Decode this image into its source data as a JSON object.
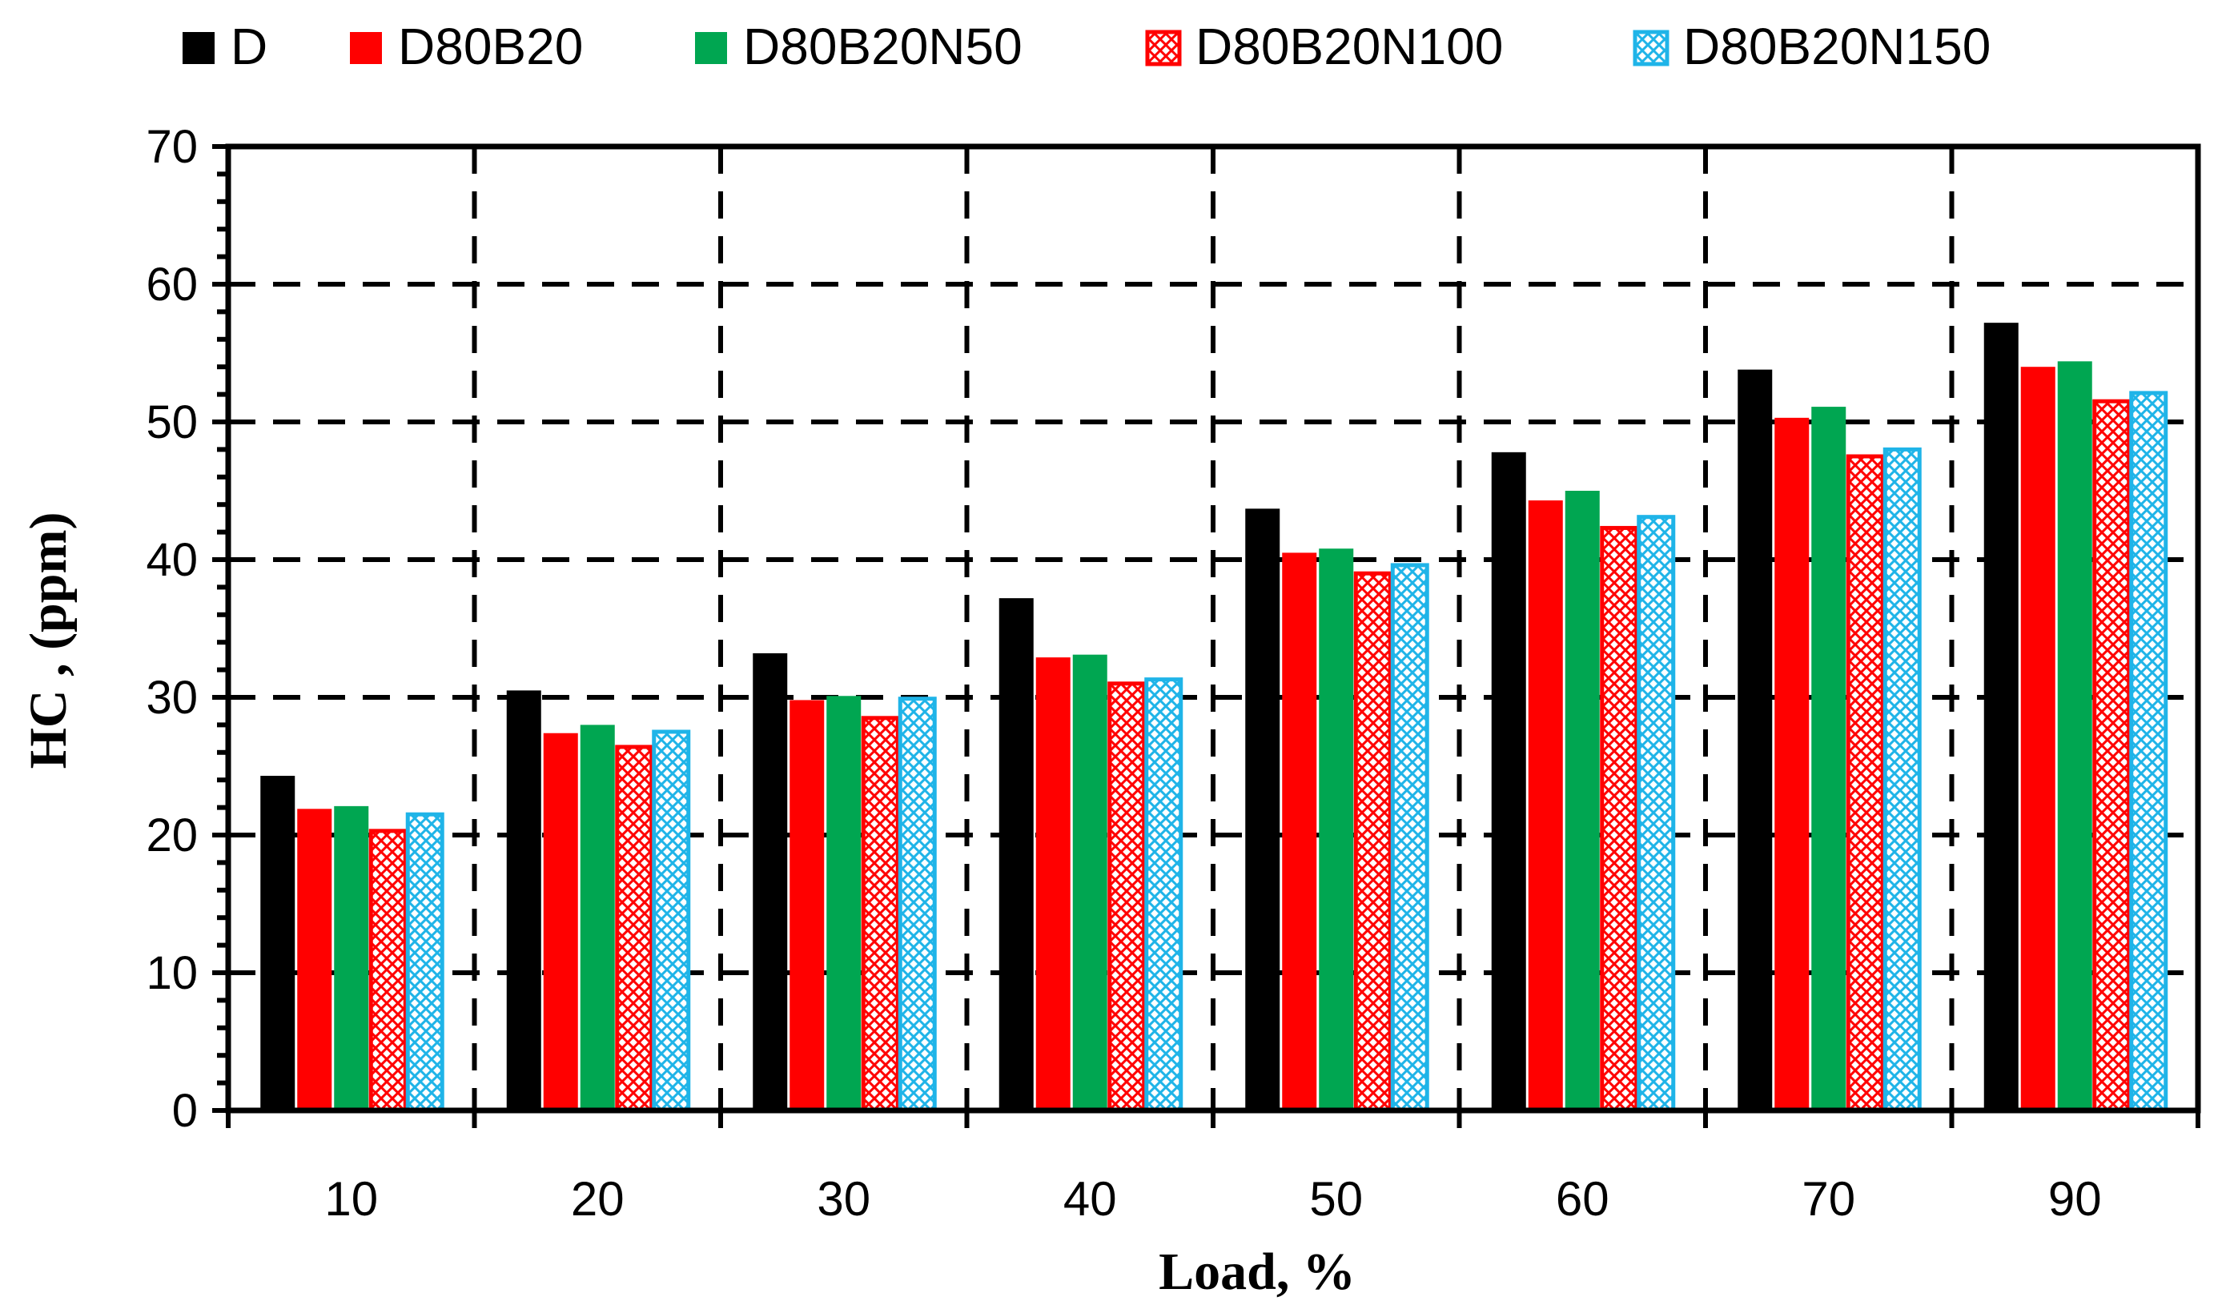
{
  "chart_data": {
    "type": "bar",
    "categories": [
      "10",
      "20",
      "30",
      "40",
      "50",
      "60",
      "70",
      "90"
    ],
    "series": [
      {
        "name": "D",
        "values": [
          24.3,
          30.5,
          33.2,
          37.2,
          43.7,
          47.8,
          53.8,
          57.2
        ]
      },
      {
        "name": "D80B20",
        "values": [
          21.9,
          27.4,
          29.8,
          32.9,
          40.5,
          44.3,
          50.3,
          54.0
        ]
      },
      {
        "name": "D80B20N50",
        "values": [
          22.1,
          28.0,
          30.1,
          33.1,
          40.8,
          45.0,
          51.1,
          54.4
        ]
      },
      {
        "name": "D80B20N100",
        "values": [
          20.3,
          26.4,
          28.5,
          31.0,
          39.0,
          42.3,
          47.5,
          51.5
        ]
      },
      {
        "name": "D80B20N150",
        "values": [
          21.5,
          27.5,
          29.9,
          31.3,
          39.6,
          43.1,
          48.0,
          52.1
        ]
      }
    ],
    "xlabel": "Load, %",
    "ylabel": "HC , (ppm)",
    "ylim": [
      0,
      70
    ],
    "yticks": [
      "0",
      "10",
      "20",
      "30",
      "40",
      "50",
      "60",
      "70"
    ],
    "grid": true,
    "legend_position": "top",
    "colors": {
      "D": "#000000",
      "D80B20": "#ff0000",
      "D80B20N50": "#00a651",
      "D80B20N100": "#ff0000",
      "D80B20N150": "#1fb4e8"
    },
    "patterns": {
      "D": "solid",
      "D80B20": "solid",
      "D80B20N50": "solid",
      "D80B20N100": "crosshatch",
      "D80B20N150": "crosshatch"
    }
  }
}
